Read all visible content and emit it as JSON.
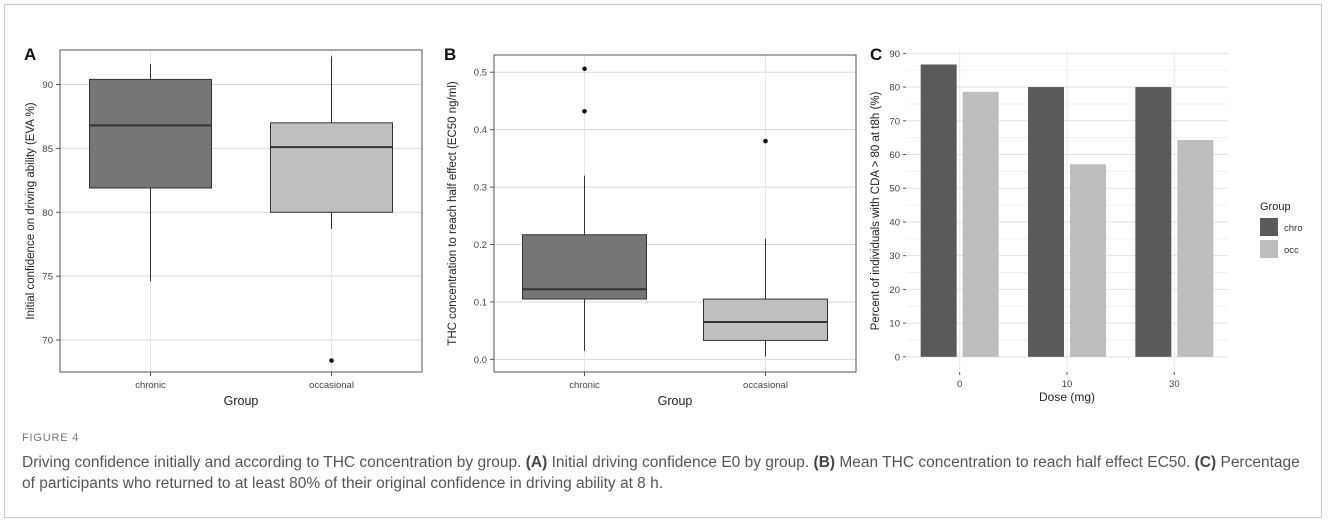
{
  "figure": {
    "label": "FIGURE 4",
    "caption": [
      {
        "text": "Driving confidence initially and according to THC concentration by group. "
      },
      {
        "text": "(A)",
        "bold": true
      },
      {
        "text": " Initial driving confidence E0 by group. "
      },
      {
        "text": "(B)",
        "bold": true
      },
      {
        "text": " Mean THC concentration to reach half effect EC50. "
      },
      {
        "text": "(C)",
        "bold": true
      },
      {
        "text": " Percentage of participants who returned to at least 80% of their original confidence in driving ability at 8 h."
      }
    ]
  },
  "chart_data": [
    {
      "panel": "A",
      "type": "boxplot",
      "xlabel": "Group",
      "ylabel": "Initial confidence on driving ability (EVA %)",
      "categories": [
        "chronic",
        "occasional"
      ],
      "ylim": [
        67.5,
        92.7
      ],
      "yticks": [
        70,
        75,
        80,
        85,
        90
      ],
      "grid": true,
      "colors": [
        "#767676",
        "#c0c0c0"
      ],
      "boxes": [
        {
          "name": "chronic",
          "whisker_low": 74.6,
          "q1": 81.9,
          "median": 86.8,
          "q3": 90.4,
          "whisker_high": 91.6,
          "outliers": []
        },
        {
          "name": "occasional",
          "whisker_low": 78.7,
          "q1": 80.0,
          "median": 85.1,
          "q3": 87.0,
          "whisker_high": 92.2,
          "outliers": [
            68.4
          ]
        }
      ]
    },
    {
      "panel": "B",
      "type": "boxplot",
      "xlabel": "Group",
      "ylabel": "THC concentration to reach half effect (EC50 ng/ml)",
      "categories": [
        "chronic",
        "occasional"
      ],
      "ylim": [
        -0.022,
        0.53
      ],
      "yticks": [
        0.0,
        0.1,
        0.2,
        0.3,
        0.4,
        0.5
      ],
      "grid": true,
      "colors": [
        "#767676",
        "#c0c0c0"
      ],
      "boxes": [
        {
          "name": "chronic",
          "whisker_low": 0.015,
          "q1": 0.105,
          "median": 0.122,
          "q3": 0.217,
          "whisker_high": 0.32,
          "outliers": [
            0.432,
            0.506
          ]
        },
        {
          "name": "occasional",
          "whisker_low": 0.005,
          "q1": 0.033,
          "median": 0.065,
          "q3": 0.105,
          "whisker_high": 0.21,
          "outliers": [
            0.38
          ]
        }
      ]
    },
    {
      "panel": "C",
      "type": "bar",
      "xlabel": "Dose (mg)",
      "ylabel": "Percent of individuals with CDA > 80 at t8h (%)",
      "categories": [
        "0",
        "10",
        "30"
      ],
      "ylim": [
        -4.5,
        91
      ],
      "yticks": [
        0,
        10,
        20,
        30,
        40,
        50,
        60,
        70,
        80,
        90
      ],
      "grid": true,
      "legend": {
        "title": "Group",
        "position": "right"
      },
      "series": [
        {
          "name": "chro",
          "color": "#5a5a5a",
          "values": [
            86.7,
            80.0,
            80.0
          ]
        },
        {
          "name": "occ",
          "color": "#bdbdbd",
          "values": [
            78.6,
            57.1,
            64.3
          ]
        }
      ]
    }
  ]
}
